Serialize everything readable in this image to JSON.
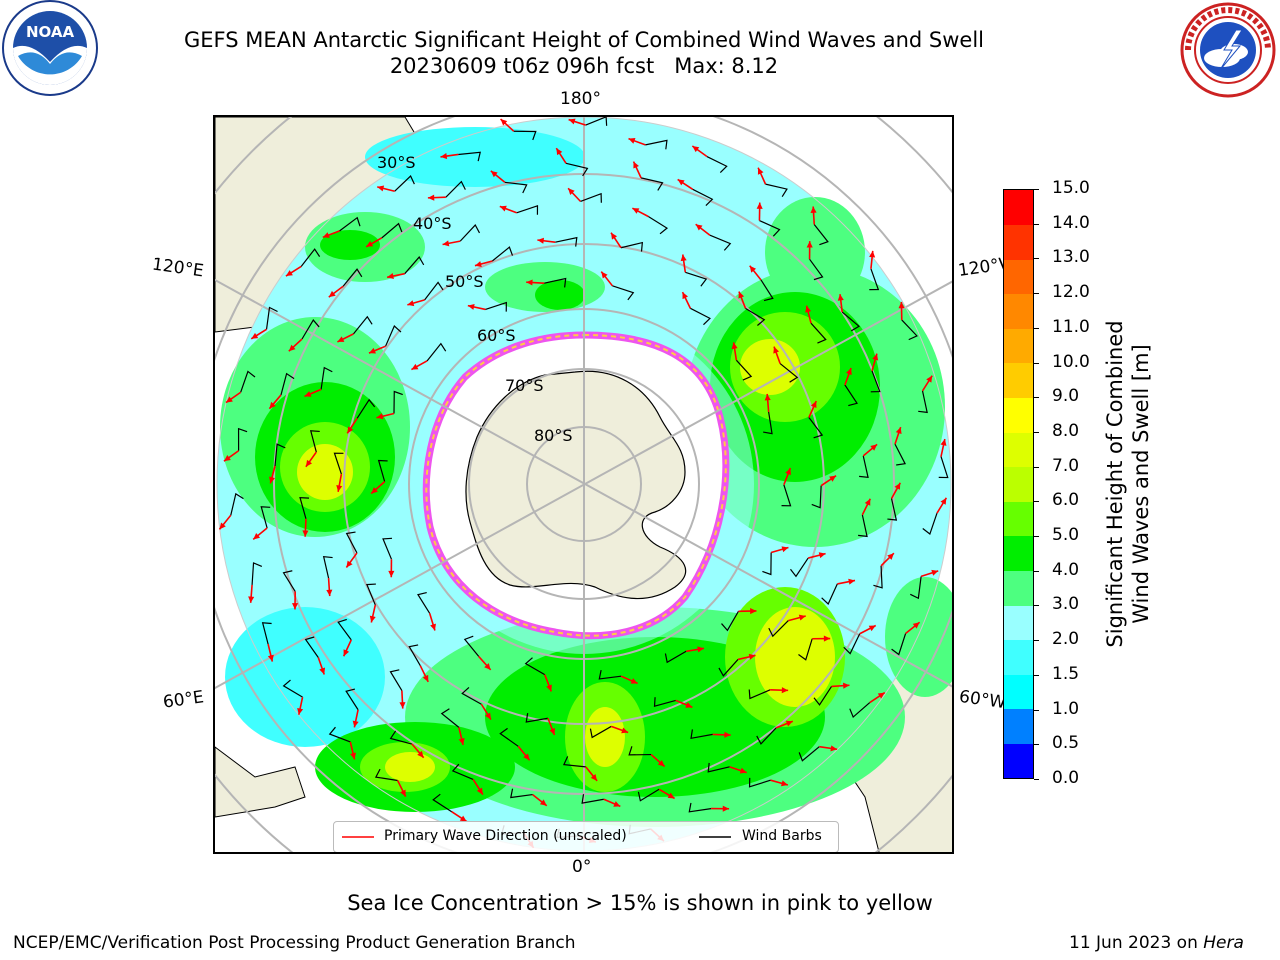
{
  "header": {
    "title": "GEFS MEAN Antarctic Significant Height of Combined Wind Waves and Swell",
    "subtitle": "20230609 t06z 096h fcst   Max: 8.12"
  },
  "logos": {
    "left": {
      "name": "NOAA",
      "ring_text": "NATIONAL OCEANIC AND ATMOSPHERIC ADMINISTRATION · U.S. DEPARTMENT OF COMMERCE"
    },
    "right": {
      "name": "NATIONAL WEATHER SERVICE"
    }
  },
  "map": {
    "longitude_labels": {
      "top": "180°",
      "bottom": "0°",
      "upper_left": "120°E",
      "upper_right": "120°W",
      "lower_left": "60°E",
      "lower_right": "60°W"
    },
    "latitude_labels": [
      "30°S",
      "40°S",
      "50°S",
      "60°S",
      "70°S",
      "80°S"
    ],
    "legend": {
      "wave_direction": "Primary Wave Direction (unscaled)",
      "wind_barbs": "Wind Barbs"
    }
  },
  "colorbar": {
    "label_line1": "Significant Height of Combined",
    "label_line2": "Wind Waves and Swell [m]",
    "ticks": [
      "15.0",
      "14.0",
      "13.0",
      "12.0",
      "11.0",
      "10.0",
      "9.0",
      "8.0",
      "7.0",
      "6.0",
      "5.0",
      "4.0",
      "3.0",
      "2.0",
      "1.5",
      "1.0",
      "0.5",
      "0.0"
    ],
    "colors_bottom_to_top": [
      "#0000ff",
      "#0080ff",
      "#00ffff",
      "#40ffff",
      "#99ffff",
      "#4dff80",
      "#00ee00",
      "#66ff00",
      "#bbff00",
      "#ddff00",
      "#ffff00",
      "#ffcc00",
      "#ffaa00",
      "#ff8800",
      "#ff6600",
      "#ff3300",
      "#ff0000"
    ]
  },
  "footer": {
    "caption": "Sea Ice Concentration > 15% is shown in pink to yellow",
    "credit": "NCEP/EMC/Verification Post Processing Product Generation Branch",
    "date_text": "11 Jun 2023 on ",
    "host": "Hera"
  },
  "colors": {
    "land": "#efeedb",
    "ocean_low": "#99ffff",
    "wave_arrow": "#ff0000",
    "ice_edge": "#ee55ee"
  }
}
